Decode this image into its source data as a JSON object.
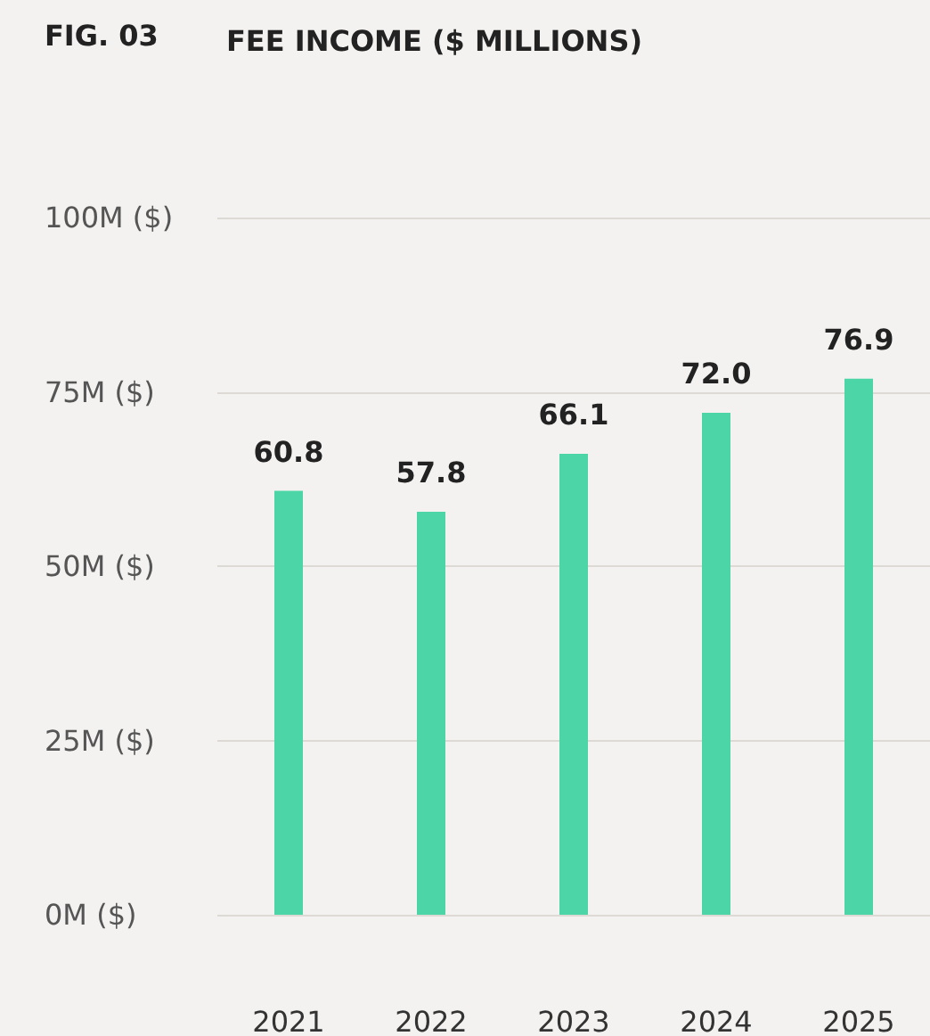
{
  "chart_data": {
    "type": "bar",
    "title": "FEE INCOME ($ MILLIONS)",
    "annotations": [
      "FIG. 03"
    ],
    "categories": [
      "2021",
      "2022",
      "2023",
      "2024",
      "2025"
    ],
    "values": [
      60.8,
      57.8,
      66.1,
      72.0,
      76.9
    ],
    "color": "#4cd5a6",
    "ylim": [
      0,
      100
    ],
    "yticks": [
      {
        "value": 0,
        "label": "0M ($)"
      },
      {
        "value": 25,
        "label": "25M ($)"
      },
      {
        "value": 50,
        "label": "50M ($)"
      },
      {
        "value": 75,
        "label": "75M ($)"
      },
      {
        "value": 100,
        "label": "100M ($)"
      }
    ],
    "value_labels": [
      "60.8",
      "57.8",
      "66.1",
      "72.0",
      "76.9"
    ],
    "grid": "y"
  }
}
